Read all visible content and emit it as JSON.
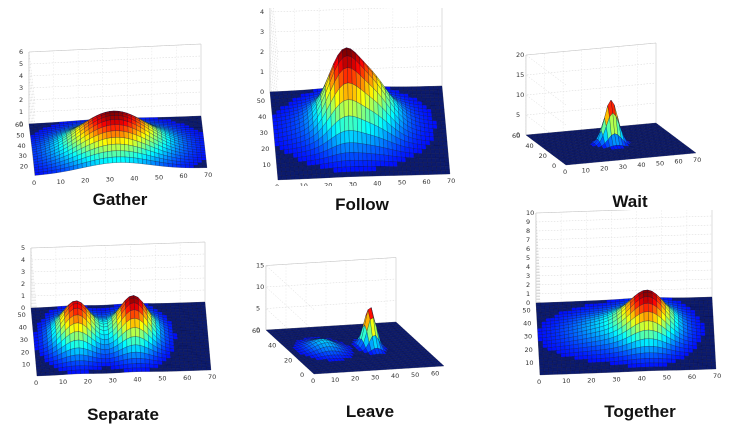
{
  "chart_data": [
    {
      "type": "surface",
      "caption": "Gather",
      "x_ticks": [
        "0",
        "10",
        "20",
        "30",
        "40",
        "50",
        "60",
        "70"
      ],
      "y_ticks": [
        "20",
        "30",
        "40",
        "50",
        "60"
      ],
      "z_ticks": [
        "0",
        "1",
        "2",
        "3",
        "4",
        "5",
        "6"
      ],
      "xlim": [
        0,
        70
      ],
      "ylim": [
        10,
        60
      ],
      "zlim": [
        0,
        6
      ],
      "peaks": [
        {
          "x": 33,
          "y": 30,
          "height": 3.2,
          "spread_x": 14,
          "spread_y": 12
        }
      ]
    },
    {
      "type": "surface",
      "caption": "Follow",
      "x_ticks": [
        "0",
        "10",
        "20",
        "30",
        "40",
        "50",
        "60",
        "70"
      ],
      "y_ticks": [
        "10",
        "20",
        "30",
        "40",
        "50"
      ],
      "z_ticks": [
        "0",
        "1",
        "2",
        "3",
        "4",
        "5",
        "6"
      ],
      "xlim": [
        0,
        70
      ],
      "ylim": [
        0,
        55
      ],
      "zlim": [
        0,
        6
      ],
      "peaks": [
        {
          "x": 28,
          "y": 30,
          "height": 2.6,
          "spread_x": 6,
          "spread_y": 9
        },
        {
          "x": 40,
          "y": 30,
          "height": 1.6,
          "spread_x": 7,
          "spread_y": 9
        },
        {
          "x": 32,
          "y": 30,
          "height": 1.0,
          "spread_x": 15,
          "spread_y": 11
        }
      ]
    },
    {
      "type": "surface",
      "caption": "Wait",
      "x_ticks": [
        "0",
        "10",
        "20",
        "30",
        "40",
        "50",
        "60",
        "70"
      ],
      "y_ticks": [
        "0",
        "20",
        "40",
        "60"
      ],
      "z_ticks": [
        "0",
        "5",
        "10",
        "15",
        "20"
      ],
      "xlim": [
        0,
        70
      ],
      "ylim": [
        0,
        60
      ],
      "zlim": [
        0,
        20
      ],
      "peaks": [
        {
          "x": 35,
          "y": 30,
          "height": 11,
          "spread_x": 3.5,
          "spread_y": 3.5
        }
      ]
    },
    {
      "type": "surface",
      "caption": "Separate",
      "x_ticks": [
        "0",
        "10",
        "20",
        "30",
        "40",
        "50",
        "60",
        "70"
      ],
      "y_ticks": [
        "10",
        "20",
        "30",
        "40",
        "50"
      ],
      "z_ticks": [
        "0",
        "1",
        "2",
        "3",
        "4",
        "5"
      ],
      "xlim": [
        0,
        70
      ],
      "ylim": [
        0,
        55
      ],
      "zlim": [
        0,
        5
      ],
      "peaks": [
        {
          "x": 17,
          "y": 28,
          "height": 3.1,
          "spread_x": 6,
          "spread_y": 10
        },
        {
          "x": 40,
          "y": 28,
          "height": 3.4,
          "spread_x": 6,
          "spread_y": 10
        }
      ]
    },
    {
      "type": "surface",
      "caption": "Leave",
      "x_ticks": [
        "0",
        "10",
        "20",
        "30",
        "40",
        "50",
        "60"
      ],
      "y_ticks": [
        "0",
        "20",
        "40",
        "60"
      ],
      "z_ticks": [
        "0",
        "5",
        "10",
        "15"
      ],
      "xlim": [
        0,
        65
      ],
      "ylim": [
        0,
        60
      ],
      "zlim": [
        0,
        15
      ],
      "peaks": [
        {
          "x": 17,
          "y": 30,
          "height": 2.3,
          "spread_x": 6,
          "spread_y": 7
        },
        {
          "x": 40,
          "y": 30,
          "height": 9.5,
          "spread_x": 2.4,
          "spread_y": 4
        }
      ]
    },
    {
      "type": "surface",
      "caption": "Together",
      "x_ticks": [
        "0",
        "10",
        "20",
        "30",
        "40",
        "50",
        "60",
        "70"
      ],
      "y_ticks": [
        "10",
        "20",
        "30",
        "40",
        "50"
      ],
      "z_ticks": [
        "0",
        "1",
        "2",
        "3",
        "4",
        "5",
        "6",
        "7",
        "8",
        "9",
        "10"
      ],
      "xlim": [
        0,
        70
      ],
      "ylim": [
        0,
        55
      ],
      "zlim": [
        0,
        10
      ],
      "peaks": [
        {
          "x": 44,
          "y": 30,
          "height": 3.6,
          "spread_x": 7,
          "spread_y": 10
        },
        {
          "x": 32,
          "y": 30,
          "height": 1.2,
          "spread_x": 14,
          "spread_y": 10
        }
      ]
    }
  ]
}
